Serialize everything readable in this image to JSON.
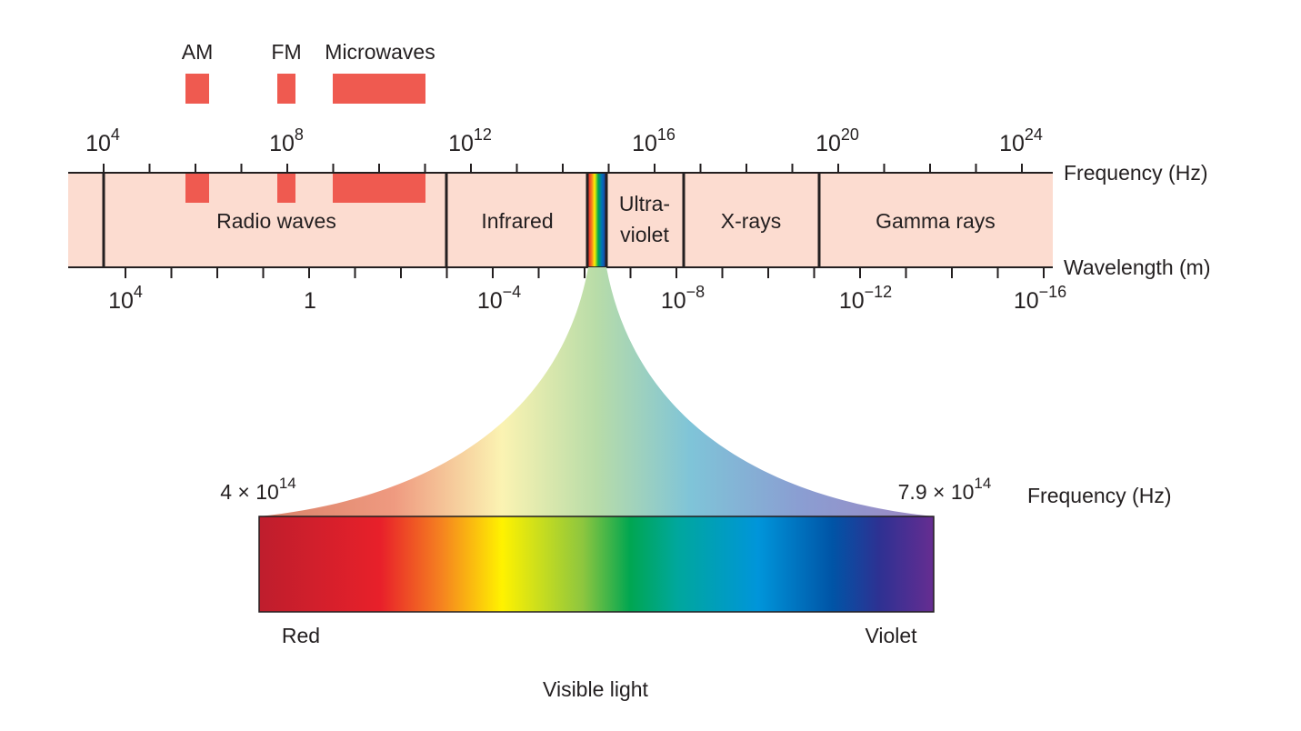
{
  "top_bands": {
    "am": "AM",
    "fm": "FM",
    "microwaves": "Microwaves"
  },
  "frequency_scale": {
    "label": "Frequency (Hz)",
    "ticks": [
      {
        "base": "10",
        "exp": "4"
      },
      {
        "base": "10",
        "exp": "8"
      },
      {
        "base": "10",
        "exp": "12"
      },
      {
        "base": "10",
        "exp": "16"
      },
      {
        "base": "10",
        "exp": "20"
      },
      {
        "base": "10",
        "exp": "24"
      }
    ]
  },
  "wavelength_scale": {
    "label": "Wavelength (m)",
    "ticks": [
      {
        "base": "10",
        "exp": "4"
      },
      {
        "base": "1",
        "exp": ""
      },
      {
        "base": "10",
        "exp": "−4"
      },
      {
        "base": "10",
        "exp": "−8"
      },
      {
        "base": "10",
        "exp": "−12"
      },
      {
        "base": "10",
        "exp": "−16"
      }
    ]
  },
  "regions": {
    "radio": "Radio waves",
    "infrared": "Infrared",
    "ultraviolet_line1": "Ultra-",
    "ultraviolet_line2": "violet",
    "xrays": "X-rays",
    "gamma": "Gamma rays"
  },
  "visible": {
    "low_freq": {
      "mantissa": "4 × 10",
      "exp": "14"
    },
    "high_freq": {
      "mantissa": "7.9 × 10",
      "exp": "14"
    },
    "freq_label": "Frequency (Hz)",
    "red_label": "Red",
    "violet_label": "Violet",
    "title": "Visible light"
  },
  "colors": {
    "band_fill": "#fcdcd0",
    "marker_red": "#ef5a50",
    "line": "#231f20"
  }
}
